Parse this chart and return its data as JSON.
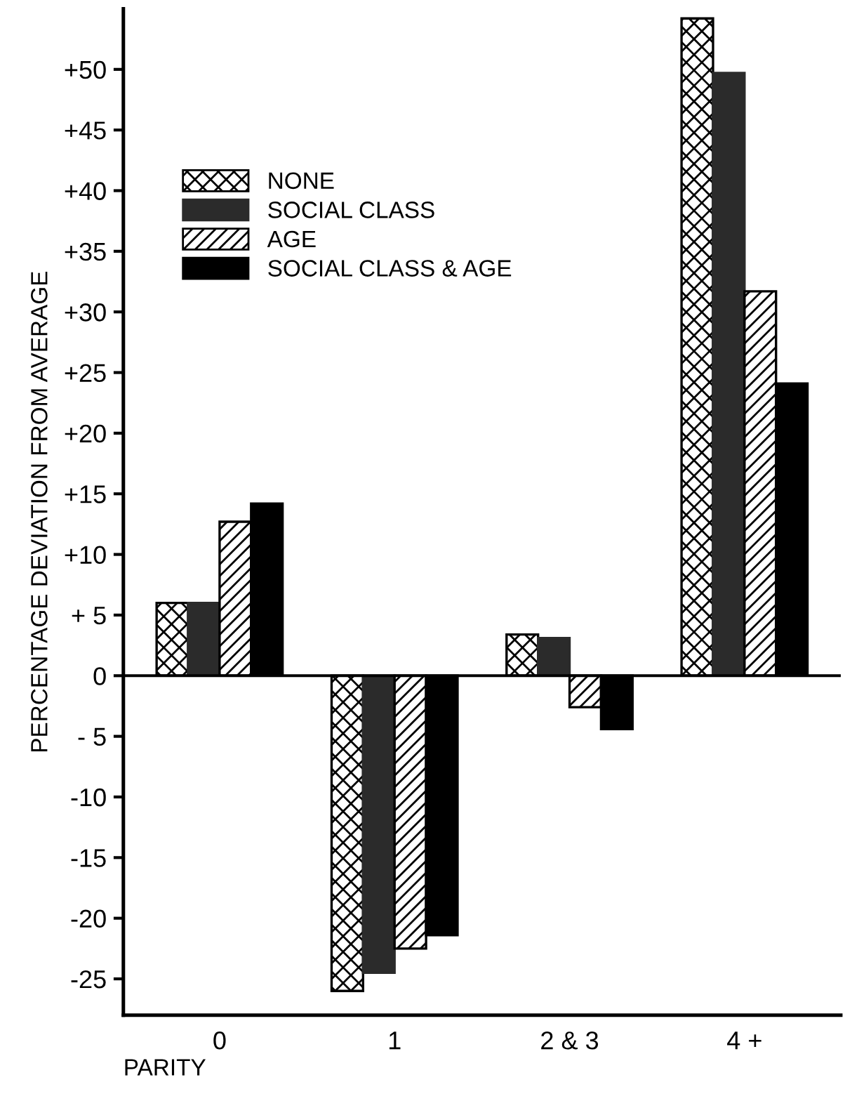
{
  "chart_data": {
    "type": "bar",
    "xlabel": "PARITY",
    "ylabel": "PERCENTAGE DEVIATION FROM AVERAGE",
    "categories": [
      "0",
      "1",
      "2 & 3",
      "4 +"
    ],
    "series": [
      {
        "name": "NONE",
        "color": "#000000",
        "values": [
          6,
          -26,
          3.4,
          54.2
        ]
      },
      {
        "name": "SOCIAL CLASS",
        "color": "#2b2b2b",
        "values": [
          6,
          -24.5,
          3.1,
          49.7
        ]
      },
      {
        "name": "AGE",
        "color": "#000000",
        "values": [
          12.7,
          -22.5,
          -2.6,
          31.7
        ]
      },
      {
        "name": "SOCIAL CLASS & AGE",
        "color": "#000000",
        "values": [
          14.2,
          -21.4,
          -4.4,
          24.1
        ]
      }
    ],
    "ylim": [
      -28,
      55
    ],
    "yticks": [
      {
        "value": -25,
        "label": "-25"
      },
      {
        "value": -20,
        "label": "-20"
      },
      {
        "value": -15,
        "label": "-15"
      },
      {
        "value": -10,
        "label": "-10"
      },
      {
        "value": -5,
        "label": "- 5"
      },
      0,
      {
        "value": 5,
        "label": "+ 5"
      },
      {
        "value": 10,
        "label": "+10"
      },
      {
        "value": 15,
        "label": "+15"
      },
      {
        "value": 20,
        "label": "+20"
      },
      {
        "value": 25,
        "label": "+25"
      },
      {
        "value": 30,
        "label": "+30"
      },
      {
        "value": 35,
        "label": "+35"
      },
      {
        "value": 40,
        "label": "+40"
      },
      {
        "value": 45,
        "label": "+45"
      },
      {
        "value": 50,
        "label": "+50"
      }
    ],
    "ref_lines": [
      {
        "axis": "y",
        "value": 0,
        "color": "#000000"
      }
    ],
    "grid": false,
    "legend": "top left"
  }
}
